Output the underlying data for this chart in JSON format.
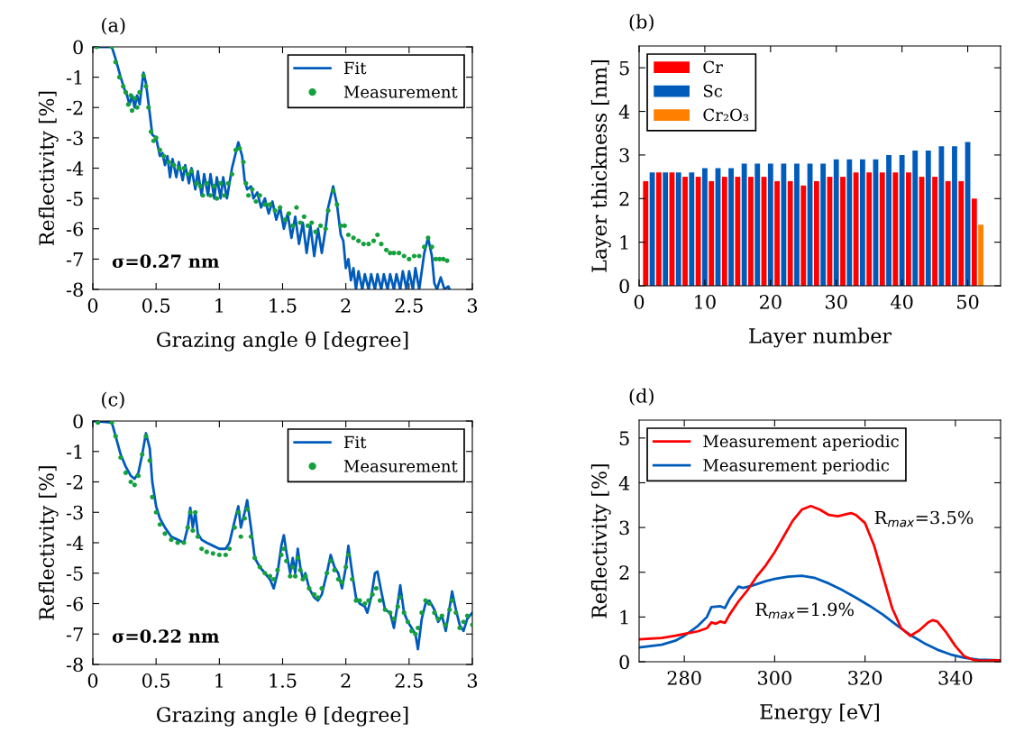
{
  "chart_data": [
    {
      "type": "line",
      "title": "(a)",
      "xlabel": "Grazing angle θ [degree]",
      "ylabel": "Reflectivity [%]",
      "xlim": [
        0,
        3
      ],
      "xticks": [
        0,
        0.5,
        1,
        1.5,
        2,
        2.5,
        3
      ],
      "ylim": [
        -8,
        0
      ],
      "yticks": [
        0,
        {
          "value": -1,
          "label": "-1"
        },
        {
          "value": -2,
          "label": "-2"
        },
        {
          "value": -3,
          "label": "-3"
        },
        {
          "value": -4,
          "label": "-4"
        },
        {
          "value": -5,
          "label": "-5"
        },
        {
          "value": -6,
          "label": "-6"
        },
        {
          "value": -7,
          "label": "-7"
        },
        {
          "value": -8,
          "label": "-8"
        }
      ],
      "legend": "top right",
      "annotations": [
        "σ=0.27 nm"
      ],
      "series": [
        {
          "name": "Fit",
          "type": "line",
          "color": "#005bbb",
          "x": [
            0,
            0.15,
            0.18,
            0.22,
            0.25,
            0.27,
            0.29,
            0.31,
            0.33,
            0.35,
            0.37,
            0.4,
            0.42,
            0.45,
            0.47,
            0.5,
            0.53,
            0.55,
            0.57,
            0.59,
            0.61,
            0.63,
            0.66,
            0.68,
            0.71,
            0.73,
            0.76,
            0.78,
            0.81,
            0.83,
            0.86,
            0.88,
            0.91,
            0.93,
            0.96,
            0.98,
            1.01,
            1.03,
            1.06,
            1.08,
            1.1,
            1.15,
            1.18,
            1.2,
            1.22,
            1.25,
            1.27,
            1.3,
            1.33,
            1.36,
            1.39,
            1.42,
            1.45,
            1.48,
            1.51,
            1.54,
            1.57,
            1.6,
            1.63,
            1.66,
            1.69,
            1.72,
            1.75,
            1.78,
            1.81,
            1.84,
            1.86,
            1.9,
            1.93,
            1.96,
            1.98,
            2.0,
            2.02,
            2.04,
            2.06,
            2.08,
            2.1,
            2.13,
            2.15,
            2.18,
            2.2,
            2.23,
            2.25,
            2.28,
            2.3,
            2.33,
            2.35,
            2.38,
            2.4,
            2.43,
            2.45,
            2.48,
            2.5,
            2.53,
            2.55,
            2.58,
            2.62,
            2.65,
            2.68,
            2.7,
            2.72,
            2.75,
            2.78,
            2.81,
            2.82
          ],
          "values": [
            0,
            0,
            -0.4,
            -1.0,
            -1.4,
            -1.6,
            -1.9,
            -1.6,
            -2.0,
            -1.6,
            -1.9,
            -0.85,
            -1.2,
            -2.2,
            -2.9,
            -3.0,
            -3.6,
            -3.5,
            -3.9,
            -3.6,
            -4.3,
            -3.7,
            -4.3,
            -3.8,
            -4.4,
            -3.9,
            -4.5,
            -4.0,
            -4.7,
            -4.1,
            -4.9,
            -4.2,
            -4.9,
            -4.2,
            -5.0,
            -4.3,
            -5.0,
            -4.3,
            -5.0,
            -4.5,
            -4.0,
            -3.15,
            -3.6,
            -4.4,
            -4.7,
            -4.6,
            -5.0,
            -4.8,
            -5.3,
            -5.0,
            -5.5,
            -5.1,
            -5.7,
            -5.3,
            -6.0,
            -5.5,
            -6.3,
            -5.6,
            -6.5,
            -5.8,
            -6.8,
            -5.9,
            -6.9,
            -6.0,
            -6.8,
            -6.0,
            -5.3,
            -4.6,
            -5.2,
            -6.2,
            -6.4,
            -7.3,
            -7.0,
            -7.7,
            -7.3,
            -8.0,
            -7.4,
            -8.0,
            -7.5,
            -8.0,
            -7.5,
            -8.0,
            -7.5,
            -8.0,
            -7.5,
            -8.0,
            -7.5,
            -8.0,
            -7.5,
            -8.0,
            -7.4,
            -8.0,
            -7.4,
            -8.0,
            -7.3,
            -8.0,
            -6.8,
            -6.3,
            -6.9,
            -7.8,
            -8.0,
            -7.6,
            -8.0,
            -7.9,
            -8.0
          ]
        },
        {
          "name": "Measurement",
          "type": "scatter",
          "marker": "circle",
          "color": "#14a03c",
          "x": [
            0.03,
            0.15,
            0.18,
            0.21,
            0.24,
            0.26,
            0.28,
            0.3,
            0.31,
            0.33,
            0.35,
            0.37,
            0.4,
            0.42,
            0.44,
            0.46,
            0.48,
            0.5,
            0.53,
            0.56,
            0.6,
            0.64,
            0.68,
            0.72,
            0.75,
            0.78,
            0.82,
            0.85,
            0.87,
            0.9,
            0.93,
            0.96,
            0.98,
            1.01,
            1.04,
            1.07,
            1.1,
            1.13,
            1.16,
            1.19,
            1.21,
            1.23,
            1.26,
            1.29,
            1.32,
            1.36,
            1.4,
            1.44,
            1.48,
            1.52,
            1.55,
            1.58,
            1.61,
            1.64,
            1.67,
            1.7,
            1.73,
            1.76,
            1.8,
            1.84,
            1.86,
            1.9,
            1.93,
            1.96,
            1.99,
            2.02,
            2.06,
            2.1,
            2.14,
            2.18,
            2.22,
            2.25,
            2.28,
            2.32,
            2.35,
            2.38,
            2.42,
            2.46,
            2.5,
            2.54,
            2.58,
            2.62,
            2.65,
            2.68,
            2.71,
            2.74,
            2.77,
            2.8
          ],
          "values": [
            0,
            0,
            -0.5,
            -1.0,
            -1.3,
            -1.5,
            -1.9,
            -1.6,
            -2.1,
            -1.7,
            -2.0,
            -1.5,
            -0.95,
            -1.3,
            -2.0,
            -2.8,
            -3.1,
            -3.0,
            -3.4,
            -3.6,
            -3.8,
            -3.9,
            -4.0,
            -4.0,
            -4.2,
            -4.1,
            -4.5,
            -4.6,
            -4.9,
            -4.5,
            -4.9,
            -4.6,
            -5.0,
            -4.5,
            -4.9,
            -4.5,
            -4.2,
            -3.4,
            -3.35,
            -3.8,
            -4.5,
            -4.9,
            -4.7,
            -5.1,
            -4.9,
            -5.2,
            -5.2,
            -5.4,
            -5.3,
            -5.7,
            -5.5,
            -5.9,
            -5.3,
            -5.8,
            -5.6,
            -5.9,
            -5.8,
            -6.1,
            -5.9,
            -6.0,
            -5.4,
            -4.75,
            -5.2,
            -5.9,
            -5.9,
            -6.2,
            -6.3,
            -6.4,
            -6.5,
            -6.5,
            -6.4,
            -6.2,
            -6.5,
            -6.7,
            -6.8,
            -6.8,
            -6.8,
            -6.9,
            -7.0,
            -6.9,
            -6.9,
            -6.6,
            -6.3,
            -6.6,
            -7.0,
            -7.0,
            -7.0,
            -7.05
          ]
        }
      ]
    },
    {
      "type": "bar",
      "title": "(b)",
      "xlabel": "Layer number",
      "ylabel": "Layer thickness [nm]",
      "xlim": [
        0,
        55
      ],
      "xticks": [
        0,
        10,
        20,
        30,
        40,
        50
      ],
      "ylim": [
        0,
        5.5
      ],
      "yticks": [
        0,
        1,
        2,
        3,
        4,
        5
      ],
      "legend": "top left",
      "series": [
        {
          "name": "Cr",
          "color": "#ff0000",
          "x": [
            1,
            3,
            5,
            7,
            9,
            11,
            13,
            15,
            17,
            19,
            21,
            23,
            25,
            27,
            29,
            31,
            33,
            35,
            37,
            39,
            41,
            43,
            45,
            47,
            49,
            51
          ],
          "values": [
            2.4,
            2.6,
            2.6,
            2.5,
            2.5,
            2.4,
            2.5,
            2.5,
            2.5,
            2.5,
            2.4,
            2.4,
            2.3,
            2.4,
            2.5,
            2.5,
            2.6,
            2.6,
            2.6,
            2.6,
            2.6,
            2.5,
            2.5,
            2.4,
            2.4,
            2.0
          ]
        },
        {
          "name": "Sc",
          "color": "#005bbb",
          "x": [
            2,
            4,
            6,
            8,
            10,
            12,
            14,
            16,
            18,
            20,
            22,
            24,
            26,
            28,
            30,
            32,
            34,
            36,
            38,
            40,
            42,
            44,
            46,
            48,
            50
          ],
          "values": [
            2.6,
            2.6,
            2.6,
            2.6,
            2.7,
            2.7,
            2.7,
            2.8,
            2.8,
            2.8,
            2.8,
            2.8,
            2.8,
            2.8,
            2.9,
            2.9,
            2.9,
            2.9,
            3.0,
            3.0,
            3.1,
            3.1,
            3.2,
            3.2,
            3.3
          ]
        },
        {
          "name": "Cr₂O₃",
          "color": "#ff8000",
          "x": [
            52
          ],
          "values": [
            1.4
          ]
        }
      ]
    },
    {
      "type": "line",
      "title": "(c)",
      "xlabel": "Grazing angle θ [degree]",
      "ylabel": "Reflectivity [%]",
      "xlim": [
        0,
        3
      ],
      "xticks": [
        0,
        0.5,
        1,
        1.5,
        2,
        2.5,
        3
      ],
      "ylim": [
        -8,
        0
      ],
      "yticks": [
        0,
        {
          "value": -1,
          "label": "-1"
        },
        {
          "value": -2,
          "label": "-2"
        },
        {
          "value": -3,
          "label": "-3"
        },
        {
          "value": -4,
          "label": "-4"
        },
        {
          "value": -5,
          "label": "-5"
        },
        {
          "value": -6,
          "label": "-6"
        },
        {
          "value": -7,
          "label": "-7"
        },
        {
          "value": -8,
          "label": "-8"
        }
      ],
      "legend": "top right",
      "annotations": [
        "σ=0.22 nm"
      ],
      "series": [
        {
          "name": "Fit",
          "type": "line",
          "color": "#005bbb",
          "x": [
            0,
            0.15,
            0.18,
            0.22,
            0.26,
            0.3,
            0.33,
            0.36,
            0.39,
            0.42,
            0.45,
            0.47,
            0.5,
            0.53,
            0.57,
            0.62,
            0.67,
            0.72,
            0.75,
            0.77,
            0.79,
            0.81,
            0.83,
            0.86,
            0.9,
            0.95,
            1.0,
            1.05,
            1.08,
            1.12,
            1.15,
            1.17,
            1.2,
            1.22,
            1.25,
            1.28,
            1.32,
            1.36,
            1.4,
            1.43,
            1.46,
            1.49,
            1.51,
            1.53,
            1.56,
            1.58,
            1.6,
            1.62,
            1.64,
            1.66,
            1.68,
            1.71,
            1.75,
            1.78,
            1.81,
            1.85,
            1.88,
            1.91,
            1.94,
            1.97,
            2.0,
            2.02,
            2.05,
            2.08,
            2.11,
            2.15,
            2.17,
            2.2,
            2.23,
            2.25,
            2.28,
            2.31,
            2.35,
            2.38,
            2.41,
            2.43,
            2.46,
            2.49,
            2.52,
            2.55,
            2.57,
            2.6,
            2.63,
            2.66,
            2.7,
            2.73,
            2.76,
            2.79,
            2.81,
            2.84,
            2.87,
            2.9,
            2.93,
            2.96,
            3.0
          ],
          "values": [
            0,
            -0.05,
            -0.5,
            -1.1,
            -1.5,
            -1.8,
            -1.9,
            -1.7,
            -1.1,
            -0.4,
            -0.9,
            -2.0,
            -2.8,
            -3.2,
            -3.5,
            -3.8,
            -3.9,
            -4.0,
            -3.5,
            -2.85,
            -3.5,
            -3.0,
            -3.7,
            -3.9,
            -4.0,
            -4.1,
            -4.2,
            -4.2,
            -4.0,
            -3.3,
            -2.8,
            -3.5,
            -3.0,
            -2.6,
            -3.5,
            -4.5,
            -4.8,
            -5.0,
            -5.2,
            -5.5,
            -5.0,
            -4.1,
            -3.75,
            -4.3,
            -5.0,
            -4.5,
            -5.0,
            -4.2,
            -4.8,
            -5.2,
            -5.0,
            -5.5,
            -5.8,
            -5.9,
            -5.7,
            -5.0,
            -4.4,
            -4.8,
            -5.0,
            -5.5,
            -4.8,
            -4.1,
            -5.0,
            -5.8,
            -6.0,
            -6.1,
            -6.3,
            -5.8,
            -5.0,
            -4.95,
            -5.6,
            -6.2,
            -6.3,
            -6.8,
            -6.0,
            -5.4,
            -6.3,
            -6.6,
            -6.8,
            -7.0,
            -7.5,
            -6.5,
            -6.0,
            -5.9,
            -6.2,
            -6.6,
            -6.4,
            -6.9,
            -6.4,
            -5.6,
            -6.2,
            -6.7,
            -6.9,
            -6.5,
            -6.3
          ]
        },
        {
          "name": "Measurement",
          "type": "scatter",
          "marker": "circle",
          "color": "#14a03c",
          "x": [
            0.04,
            0.15,
            0.18,
            0.22,
            0.26,
            0.3,
            0.33,
            0.36,
            0.39,
            0.42,
            0.45,
            0.47,
            0.5,
            0.53,
            0.57,
            0.62,
            0.67,
            0.72,
            0.75,
            0.77,
            0.79,
            0.81,
            0.83,
            0.86,
            0.9,
            0.95,
            1.0,
            1.05,
            1.08,
            1.12,
            1.15,
            1.17,
            1.2,
            1.22,
            1.25,
            1.28,
            1.32,
            1.36,
            1.4,
            1.43,
            1.46,
            1.49,
            1.51,
            1.53,
            1.56,
            1.58,
            1.6,
            1.62,
            1.64,
            1.66,
            1.68,
            1.71,
            1.75,
            1.78,
            1.81,
            1.85,
            1.88,
            1.91,
            1.94,
            1.97,
            2.0,
            2.02,
            2.05,
            2.08,
            2.11,
            2.15,
            2.18,
            2.21,
            2.24,
            2.27,
            2.31,
            2.35,
            2.38,
            2.41,
            2.43,
            2.46,
            2.49,
            2.52,
            2.55,
            2.57,
            2.6,
            2.63,
            2.66,
            2.7,
            2.73,
            2.76,
            2.79,
            2.82,
            2.84,
            2.87,
            2.9,
            2.93,
            2.96,
            3.0
          ],
          "values": [
            -0.05,
            -0.05,
            -0.5,
            -1.2,
            -1.7,
            -2.0,
            -2.1,
            -1.8,
            -1.1,
            -0.5,
            -1.3,
            -2.5,
            -3.0,
            -3.4,
            -3.7,
            -3.9,
            -4.0,
            -4.0,
            -3.5,
            -3.0,
            -3.6,
            -3.0,
            -3.8,
            -4.2,
            -4.3,
            -4.35,
            -4.4,
            -4.4,
            -4.2,
            -3.5,
            -3.0,
            -3.8,
            -3.2,
            -2.9,
            -3.8,
            -4.5,
            -4.8,
            -5.0,
            -5.1,
            -5.2,
            -4.9,
            -4.4,
            -4.2,
            -4.6,
            -5.1,
            -4.8,
            -5.1,
            -4.5,
            -4.9,
            -5.2,
            -5.1,
            -5.5,
            -5.7,
            -5.8,
            -5.5,
            -5.0,
            -4.6,
            -4.9,
            -5.2,
            -5.3,
            -4.8,
            -4.4,
            -5.2,
            -5.9,
            -5.9,
            -6.0,
            -5.9,
            -5.7,
            -5.5,
            -5.9,
            -6.2,
            -6.3,
            -6.5,
            -6.1,
            -5.8,
            -6.3,
            -6.6,
            -6.9,
            -7.0,
            -6.8,
            -6.3,
            -5.9,
            -6.0,
            -6.3,
            -6.5,
            -6.4,
            -6.7,
            -6.2,
            -5.9,
            -6.3,
            -6.8,
            -6.6,
            -6.4,
            -6.7
          ]
        }
      ]
    },
    {
      "type": "line",
      "title": "(d)",
      "xlabel": "Energy [eV]",
      "ylabel": "Reflectivity [%]",
      "xlim": [
        270,
        350
      ],
      "xticks": [
        280,
        300,
        320,
        340
      ],
      "ylim": [
        0,
        5.4
      ],
      "yticks": [
        0,
        1,
        2,
        3,
        4,
        5
      ],
      "legend": "top left",
      "annotations": [
        "R$_{max}$=3.5%",
        "R$_{max}$=1.9%"
      ],
      "series": [
        {
          "name": "Measurement aperiodic",
          "color": "#ff0000",
          "x": [
            270,
            275,
            278,
            280,
            283,
            285,
            286,
            287,
            288,
            289,
            290,
            292,
            294,
            296,
            298,
            300,
            302,
            304,
            306,
            308,
            310,
            312,
            314,
            316,
            317,
            318,
            320,
            322,
            324,
            326,
            328,
            330,
            332,
            334,
            335,
            336,
            338,
            340,
            342,
            344,
            346,
            350
          ],
          "values": [
            0.5,
            0.53,
            0.58,
            0.62,
            0.68,
            0.75,
            0.88,
            0.85,
            0.9,
            0.87,
            1.05,
            1.35,
            1.6,
            1.9,
            2.15,
            2.45,
            2.8,
            3.15,
            3.4,
            3.48,
            3.4,
            3.28,
            3.25,
            3.3,
            3.32,
            3.28,
            3.1,
            2.6,
            1.9,
            1.2,
            0.75,
            0.58,
            0.7,
            0.88,
            0.93,
            0.9,
            0.65,
            0.35,
            0.12,
            0.04,
            0.02,
            0.03
          ]
        },
        {
          "name": "Measurement periodic",
          "color": "#005bbb",
          "x": [
            270,
            275,
            278,
            280,
            283,
            285,
            286,
            288,
            289,
            290,
            292,
            293,
            295,
            298,
            300,
            303,
            306,
            309,
            312,
            315,
            318,
            321,
            324,
            327,
            330,
            333,
            336,
            339,
            342,
            345,
            350
          ],
          "values": [
            0.32,
            0.38,
            0.47,
            0.58,
            0.8,
            1.0,
            1.22,
            1.24,
            1.2,
            1.4,
            1.68,
            1.65,
            1.7,
            1.8,
            1.85,
            1.9,
            1.92,
            1.87,
            1.75,
            1.6,
            1.43,
            1.25,
            1.05,
            0.82,
            0.6,
            0.42,
            0.27,
            0.16,
            0.09,
            0.05,
            0.03
          ]
        }
      ]
    }
  ]
}
